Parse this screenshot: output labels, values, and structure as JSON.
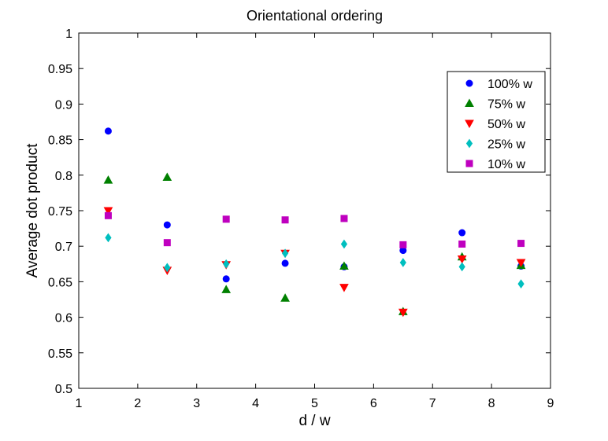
{
  "chart_data": {
    "type": "scatter",
    "title": "Orientational ordering",
    "xlabel": "d / w",
    "ylabel": "Average dot product",
    "xlim": [
      1,
      9
    ],
    "ylim": [
      0.5,
      1
    ],
    "xticks": [
      1,
      2,
      3,
      4,
      5,
      6,
      7,
      8,
      9
    ],
    "yticks": [
      0.5,
      0.55,
      0.6,
      0.65,
      0.7,
      0.75,
      0.8,
      0.85,
      0.9,
      0.95,
      1
    ],
    "xtick_labels": [
      "1",
      "2",
      "3",
      "4",
      "5",
      "6",
      "7",
      "8",
      "9"
    ],
    "ytick_labels": [
      "0.5",
      "0.55",
      "0.6",
      "0.65",
      "0.7",
      "0.75",
      "0.8",
      "0.85",
      "0.9",
      "0.95",
      "1"
    ],
    "grid": false,
    "legend_position": "top-right",
    "x": [
      1.5,
      2.5,
      3.5,
      4.5,
      5.5,
      6.5,
      7.5,
      8.5
    ],
    "series": [
      {
        "name": "100% w",
        "marker": "circle",
        "color": "#0000ff",
        "values": [
          0.862,
          0.73,
          0.654,
          0.676,
          0.671,
          0.694,
          0.719,
          0.672
        ]
      },
      {
        "name": "75% w",
        "marker": "triangle-up",
        "color": "#008000",
        "values": [
          0.793,
          0.797,
          0.639,
          0.627,
          0.672,
          0.608,
          0.685,
          0.673
        ]
      },
      {
        "name": "50% w",
        "marker": "triangle-down",
        "color": "#ff0000",
        "values": [
          0.75,
          0.666,
          0.674,
          0.69,
          0.642,
          0.607,
          0.682,
          0.677
        ]
      },
      {
        "name": "25% w",
        "marker": "diamond",
        "color": "#00bfbf",
        "values": [
          0.712,
          0.67,
          0.675,
          0.69,
          0.703,
          0.677,
          0.671,
          0.647
        ]
      },
      {
        "name": "10% w",
        "marker": "square",
        "color": "#bf00bf",
        "values": [
          0.743,
          0.705,
          0.738,
          0.737,
          0.739,
          0.702,
          0.703,
          0.704
        ]
      }
    ]
  }
}
